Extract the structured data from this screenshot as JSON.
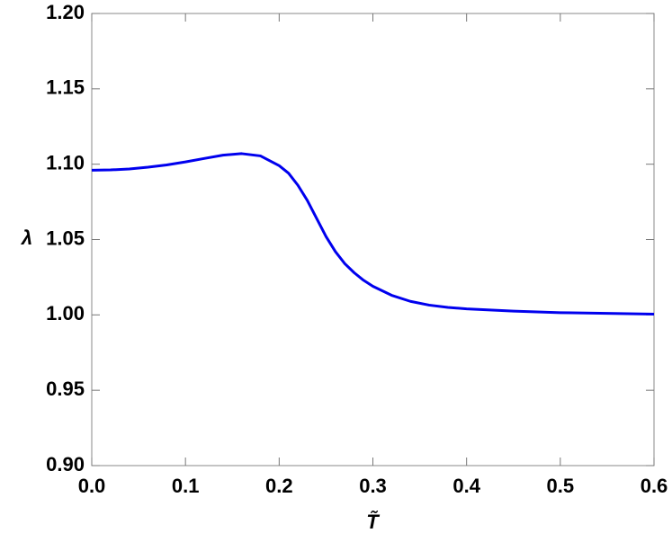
{
  "chart_data": {
    "type": "line",
    "x_label": "T̃",
    "y_label": "λ",
    "xlim": [
      0,
      0.6
    ],
    "ylim": [
      0.9,
      1.2
    ],
    "xticks": [
      {
        "value": 0,
        "label": "0.0"
      },
      0.1,
      0.2,
      0.3,
      0.4,
      0.5,
      0.6
    ],
    "yticks": [
      {
        "value": 0.9,
        "label": "0.90"
      },
      0.95,
      {
        "value": 1,
        "label": "1.00"
      },
      1.05,
      {
        "value": 1.1,
        "label": "1.10"
      },
      1.15,
      {
        "value": 1.2,
        "label": "1.20"
      }
    ],
    "grid": false,
    "series": [
      {
        "color": "#0000ee",
        "x": [
          0,
          0.02,
          0.04,
          0.06,
          0.08,
          0.1,
          0.12,
          0.14,
          0.16,
          0.18,
          0.2,
          0.21,
          0.22,
          0.23,
          0.24,
          0.25,
          0.26,
          0.27,
          0.28,
          0.29,
          0.3,
          0.32,
          0.34,
          0.36,
          0.38,
          0.4,
          0.45,
          0.5,
          0.55,
          0.6
        ],
        "values": [
          1.096,
          1.0962,
          1.0968,
          1.098,
          1.0995,
          1.1015,
          1.1038,
          1.106,
          1.107,
          1.1055,
          1.099,
          1.094,
          1.086,
          1.076,
          1.064,
          1.052,
          1.042,
          1.034,
          1.028,
          1.023,
          1.019,
          1.013,
          1.009,
          1.0065,
          1.005,
          1.004,
          1.0025,
          1.0015,
          1.001,
          1.0005
        ]
      }
    ]
  }
}
